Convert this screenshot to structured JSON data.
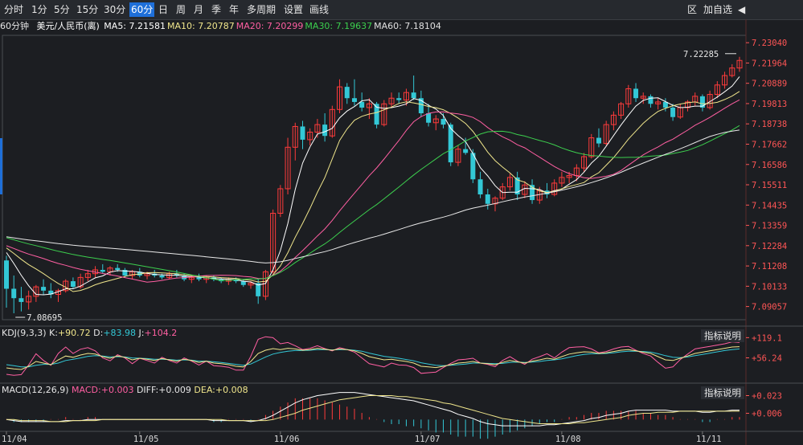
{
  "toolbar": {
    "periods": [
      "分时",
      "1分",
      "5分",
      "15分",
      "30分",
      "60分",
      "日",
      "周",
      "月",
      "季",
      "年",
      "多周期",
      "设置",
      "画线"
    ],
    "active": "60分",
    "right": [
      "区",
      "加自选"
    ]
  },
  "info": {
    "period": "60分钟",
    "name": "美元/人民币(离)",
    "ma": [
      {
        "label": "MA5:",
        "value": "7.21581",
        "color": "#ffffff"
      },
      {
        "label": "MA10:",
        "value": "7.20787",
        "color": "#f0e68c"
      },
      {
        "label": "MA20:",
        "value": "7.20299",
        "color": "#ff5fa2"
      },
      {
        "label": "MA30:",
        "value": "7.19637",
        "color": "#3ccf4e"
      },
      {
        "label": "MA60:",
        "value": "7.18104",
        "color": "#e0e0e0"
      }
    ]
  },
  "colors": {
    "up": "#ff3b3b",
    "down": "#33c8d6",
    "ma5": "#ffffff",
    "ma10": "#f0e68c",
    "ma20": "#ff5fa2",
    "ma30": "#3ccf4e",
    "ma60": "#e8e8e8",
    "axis": "#ff5555"
  },
  "kdj": {
    "title": "KDJ(9,3,3)",
    "k_label": "K:",
    "k": "+90.72",
    "d_label": "D:",
    "d": "+83.98",
    "j_label": "J:",
    "j": "+104.2",
    "explain": "指标说明",
    "ticks": [
      "+119.1",
      "+56.24"
    ]
  },
  "macd": {
    "title": "MACD(12,26,9)",
    "m_label": "MACD:",
    "m": "+0.003",
    "diff_label": "DIFF:",
    "diff": "+0.009",
    "dea_label": "DEA:",
    "dea": "+0.008",
    "explain": "指标说明",
    "ticks": [
      "+0.023",
      "+0.006"
    ]
  },
  "chart_data": {
    "type": "candlestick",
    "ylim": [
      7.0836,
      7.2343
    ],
    "yticks": [
      "7.23040",
      "7.21964",
      "7.20889",
      "7.19813",
      "7.18738",
      "7.17662",
      "7.16586",
      "7.15511",
      "7.14435",
      "7.13359",
      "7.12284",
      "7.11208",
      "7.10133",
      "7.09057"
    ],
    "xlabels": [
      {
        "label": "11/04",
        "i": 0
      },
      {
        "label": "11/05",
        "i": 18
      },
      {
        "label": "11/06",
        "i": 37
      },
      {
        "label": "11/07",
        "i": 56
      },
      {
        "label": "11/08",
        "i": 75
      },
      {
        "label": "11/11",
        "i": 94
      }
    ],
    "max_label": "7.22285",
    "min_label": "7.08695",
    "ohlc": [
      [
        7.115,
        7.1175,
        7.09,
        7.1
      ],
      [
        7.1,
        7.107,
        7.087,
        7.095
      ],
      [
        7.095,
        7.101,
        7.088,
        7.093
      ],
      [
        7.093,
        7.099,
        7.089,
        7.096
      ],
      [
        7.096,
        7.102,
        7.093,
        7.101
      ],
      [
        7.101,
        7.105,
        7.097,
        7.099
      ],
      [
        7.099,
        7.103,
        7.095,
        7.097
      ],
      [
        7.097,
        7.1,
        7.093,
        7.099
      ],
      [
        7.099,
        7.105,
        7.098,
        7.104
      ],
      [
        7.104,
        7.106,
        7.1,
        7.101
      ],
      [
        7.101,
        7.108,
        7.1,
        7.106
      ],
      [
        7.106,
        7.11,
        7.104,
        7.108
      ],
      [
        7.108,
        7.112,
        7.106,
        7.11
      ],
      [
        7.11,
        7.113,
        7.108,
        7.109
      ],
      [
        7.109,
        7.112,
        7.107,
        7.111
      ],
      [
        7.111,
        7.113,
        7.109,
        7.11
      ],
      [
        7.11,
        7.111,
        7.106,
        7.107
      ],
      [
        7.107,
        7.11,
        7.105,
        7.109
      ],
      [
        7.109,
        7.111,
        7.106,
        7.107
      ],
      [
        7.107,
        7.109,
        7.105,
        7.108
      ],
      [
        7.108,
        7.11,
        7.106,
        7.107
      ],
      [
        7.107,
        7.108,
        7.105,
        7.106
      ],
      [
        7.106,
        7.109,
        7.105,
        7.108
      ],
      [
        7.108,
        7.11,
        7.106,
        7.107
      ],
      [
        7.107,
        7.108,
        7.104,
        7.105
      ],
      [
        7.105,
        7.107,
        7.103,
        7.106
      ],
      [
        7.106,
        7.108,
        7.104,
        7.105
      ],
      [
        7.105,
        7.107,
        7.103,
        7.106
      ],
      [
        7.106,
        7.107,
        7.104,
        7.105
      ],
      [
        7.105,
        7.106,
        7.103,
        7.104
      ],
      [
        7.104,
        7.106,
        7.102,
        7.105
      ],
      [
        7.105,
        7.106,
        7.103,
        7.104
      ],
      [
        7.104,
        7.105,
        7.101,
        7.102
      ],
      [
        7.102,
        7.104,
        7.1,
        7.103
      ],
      [
        7.103,
        7.105,
        7.092,
        7.096
      ],
      [
        7.096,
        7.11,
        7.094,
        7.109
      ],
      [
        7.109,
        7.142,
        7.108,
        7.14
      ],
      [
        7.14,
        7.155,
        7.138,
        7.153
      ],
      [
        7.153,
        7.18,
        7.15,
        7.175
      ],
      [
        7.175,
        7.188,
        7.168,
        7.186
      ],
      [
        7.186,
        7.189,
        7.174,
        7.179
      ],
      [
        7.179,
        7.185,
        7.176,
        7.183
      ],
      [
        7.183,
        7.19,
        7.18,
        7.187
      ],
      [
        7.187,
        7.193,
        7.178,
        7.181
      ],
      [
        7.181,
        7.197,
        7.18,
        7.195
      ],
      [
        7.195,
        7.211,
        7.193,
        7.207
      ],
      [
        7.207,
        7.209,
        7.198,
        7.201
      ],
      [
        7.201,
        7.211,
        7.197,
        7.199
      ],
      [
        7.199,
        7.204,
        7.194,
        7.196
      ],
      [
        7.196,
        7.201,
        7.19,
        7.198
      ],
      [
        7.198,
        7.199,
        7.185,
        7.187
      ],
      [
        7.187,
        7.2,
        7.186,
        7.198
      ],
      [
        7.198,
        7.204,
        7.196,
        7.201
      ],
      [
        7.201,
        7.204,
        7.198,
        7.2
      ],
      [
        7.2,
        7.206,
        7.197,
        7.204
      ],
      [
        7.204,
        7.213,
        7.2,
        7.201
      ],
      [
        7.201,
        7.205,
        7.191,
        7.193
      ],
      [
        7.193,
        7.198,
        7.186,
        7.188
      ],
      [
        7.188,
        7.192,
        7.184,
        7.19
      ],
      [
        7.19,
        7.193,
        7.185,
        7.187
      ],
      [
        7.187,
        7.188,
        7.165,
        7.167
      ],
      [
        7.167,
        7.176,
        7.165,
        7.174
      ],
      [
        7.174,
        7.18,
        7.171,
        7.172
      ],
      [
        7.172,
        7.174,
        7.156,
        7.158
      ],
      [
        7.158,
        7.162,
        7.148,
        7.15
      ],
      [
        7.15,
        7.153,
        7.142,
        7.145
      ],
      [
        7.145,
        7.149,
        7.141,
        7.148
      ],
      [
        7.148,
        7.156,
        7.147,
        7.154
      ],
      [
        7.154,
        7.161,
        7.152,
        7.159
      ],
      [
        7.159,
        7.162,
        7.147,
        7.15
      ],
      [
        7.15,
        7.157,
        7.148,
        7.155
      ],
      [
        7.155,
        7.158,
        7.145,
        7.147
      ],
      [
        7.147,
        7.154,
        7.145,
        7.152
      ],
      [
        7.152,
        7.156,
        7.148,
        7.15
      ],
      [
        7.15,
        7.158,
        7.149,
        7.156
      ],
      [
        7.156,
        7.162,
        7.154,
        7.159
      ],
      [
        7.159,
        7.162,
        7.156,
        7.16
      ],
      [
        7.16,
        7.166,
        7.157,
        7.164
      ],
      [
        7.164,
        7.172,
        7.162,
        7.17
      ],
      [
        7.17,
        7.182,
        7.169,
        7.18
      ],
      [
        7.18,
        7.185,
        7.175,
        7.177
      ],
      [
        7.177,
        7.189,
        7.176,
        7.187
      ],
      [
        7.187,
        7.194,
        7.184,
        7.192
      ],
      [
        7.192,
        7.199,
        7.19,
        7.198
      ],
      [
        7.198,
        7.208,
        7.196,
        7.206
      ],
      [
        7.206,
        7.209,
        7.199,
        7.201
      ],
      [
        7.201,
        7.204,
        7.198,
        7.202
      ],
      [
        7.202,
        7.203,
        7.196,
        7.198
      ],
      [
        7.198,
        7.201,
        7.195,
        7.199
      ],
      [
        7.199,
        7.201,
        7.194,
        7.196
      ],
      [
        7.196,
        7.198,
        7.189,
        7.191
      ],
      [
        7.191,
        7.198,
        7.19,
        7.196
      ],
      [
        7.196,
        7.2,
        7.194,
        7.199
      ],
      [
        7.199,
        7.204,
        7.197,
        7.202
      ],
      [
        7.202,
        7.203,
        7.194,
        7.196
      ],
      [
        7.196,
        7.205,
        7.195,
        7.203
      ],
      [
        7.203,
        7.21,
        7.201,
        7.208
      ],
      [
        7.208,
        7.215,
        7.206,
        7.213
      ],
      [
        7.213,
        7.219,
        7.212,
        7.217
      ],
      [
        7.217,
        7.2229,
        7.215,
        7.221
      ]
    ],
    "kdj_k": [
      25,
      22,
      20,
      30,
      45,
      40,
      35,
      50,
      62,
      58,
      65,
      70,
      68,
      60,
      55,
      62,
      58,
      50,
      55,
      52,
      48,
      54,
      50,
      46,
      52,
      48,
      42,
      46,
      40,
      38,
      35,
      30,
      28,
      45,
      70,
      80,
      85,
      82,
      86,
      84,
      80,
      82,
      86,
      83,
      80,
      84,
      82,
      78,
      70,
      60,
      55,
      50,
      52,
      48,
      45,
      40,
      30,
      28,
      26,
      30,
      35,
      40,
      42,
      45,
      40,
      38,
      35,
      42,
      48,
      44,
      40,
      46,
      50,
      55,
      52,
      60,
      68,
      72,
      75,
      74,
      70,
      72,
      76,
      80,
      82,
      78,
      74,
      70,
      60,
      50,
      48,
      55,
      62,
      70,
      74,
      78,
      82,
      86,
      90,
      91
    ],
    "kdj_d": [
      35,
      32,
      28,
      28,
      33,
      36,
      36,
      40,
      48,
      52,
      56,
      61,
      63,
      62,
      59,
      60,
      59,
      56,
      55,
      54,
      52,
      52,
      51,
      49,
      50,
      49,
      46,
      46,
      44,
      42,
      39,
      36,
      33,
      37,
      48,
      59,
      68,
      73,
      77,
      79,
      79,
      80,
      82,
      82,
      81,
      82,
      82,
      80,
      77,
      71,
      66,
      61,
      58,
      55,
      51,
      47,
      41,
      37,
      33,
      32,
      33,
      35,
      37,
      40,
      40,
      39,
      38,
      39,
      42,
      43,
      42,
      43,
      45,
      48,
      50,
      53,
      58,
      63,
      67,
      69,
      69,
      70,
      72,
      75,
      77,
      77,
      76,
      74,
      69,
      63,
      58,
      57,
      59,
      63,
      67,
      71,
      75,
      79,
      82,
      84
    ],
    "kdj_j": [
      5,
      2,
      4,
      34,
      69,
      48,
      33,
      70,
      90,
      70,
      83,
      88,
      78,
      56,
      47,
      66,
      56,
      38,
      55,
      48,
      40,
      58,
      48,
      40,
      56,
      46,
      34,
      46,
      32,
      30,
      27,
      18,
      18,
      61,
      114,
      122,
      119,
      100,
      104,
      94,
      82,
      86,
      94,
      85,
      78,
      88,
      82,
      74,
      56,
      38,
      33,
      28,
      40,
      34,
      33,
      26,
      8,
      10,
      12,
      26,
      39,
      50,
      52,
      55,
      40,
      36,
      29,
      48,
      60,
      46,
      36,
      52,
      60,
      69,
      56,
      74,
      88,
      90,
      91,
      84,
      72,
      76,
      84,
      90,
      92,
      80,
      70,
      62,
      42,
      24,
      28,
      51,
      68,
      84,
      88,
      92,
      96,
      100,
      106,
      104
    ],
    "macd_diff": [
      0.0,
      -0.001,
      -0.002,
      -0.002,
      -0.002,
      -0.002,
      -0.002,
      -0.002,
      -0.001,
      -0.001,
      -0.001,
      0.0,
      0.0,
      0.0,
      0.0,
      0.0,
      0.0,
      0.0,
      0.0,
      0.0,
      0.0,
      0.0,
      0.0,
      0.0,
      0.0,
      0.0,
      0.0,
      0.0,
      -0.001,
      -0.001,
      -0.001,
      -0.001,
      -0.001,
      -0.002,
      -0.001,
      0.001,
      0.004,
      0.008,
      0.012,
      0.016,
      0.019,
      0.021,
      0.023,
      0.024,
      0.025,
      0.026,
      0.026,
      0.026,
      0.025,
      0.024,
      0.023,
      0.022,
      0.021,
      0.02,
      0.019,
      0.018,
      0.016,
      0.014,
      0.012,
      0.01,
      0.008,
      0.005,
      0.003,
      0.001,
      -0.002,
      -0.004,
      -0.005,
      -0.006,
      -0.006,
      -0.006,
      -0.006,
      -0.006,
      -0.006,
      -0.005,
      -0.005,
      -0.004,
      -0.003,
      -0.002,
      -0.001,
      0.001,
      0.002,
      0.004,
      0.005,
      0.006,
      0.008,
      0.009,
      0.009,
      0.009,
      0.009,
      0.009,
      0.008,
      0.008,
      0.008,
      0.008,
      0.007,
      0.007,
      0.008,
      0.008,
      0.009,
      0.009
    ],
    "macd_dea": [
      0.0,
      0.0,
      -0.001,
      -0.001,
      -0.001,
      -0.001,
      -0.002,
      -0.002,
      -0.002,
      -0.001,
      -0.001,
      -0.001,
      -0.001,
      0.0,
      0.0,
      0.0,
      0.0,
      0.0,
      0.0,
      0.0,
      0.0,
      0.0,
      0.0,
      0.0,
      0.0,
      0.0,
      0.0,
      0.0,
      0.0,
      0.0,
      -0.001,
      -0.001,
      -0.001,
      -0.001,
      -0.001,
      -0.001,
      0.0,
      0.002,
      0.004,
      0.006,
      0.009,
      0.011,
      0.013,
      0.015,
      0.017,
      0.019,
      0.02,
      0.021,
      0.022,
      0.023,
      0.023,
      0.023,
      0.023,
      0.022,
      0.022,
      0.021,
      0.02,
      0.019,
      0.018,
      0.016,
      0.015,
      0.013,
      0.011,
      0.009,
      0.007,
      0.005,
      0.003,
      0.001,
      0.0,
      -0.001,
      -0.002,
      -0.003,
      -0.004,
      -0.004,
      -0.004,
      -0.004,
      -0.004,
      -0.003,
      -0.003,
      -0.002,
      -0.001,
      0.0,
      0.001,
      0.002,
      0.004,
      0.005,
      0.006,
      0.006,
      0.007,
      0.007,
      0.007,
      0.008,
      0.008,
      0.008,
      0.008,
      0.008,
      0.008,
      0.008,
      0.008,
      0.008
    ]
  }
}
